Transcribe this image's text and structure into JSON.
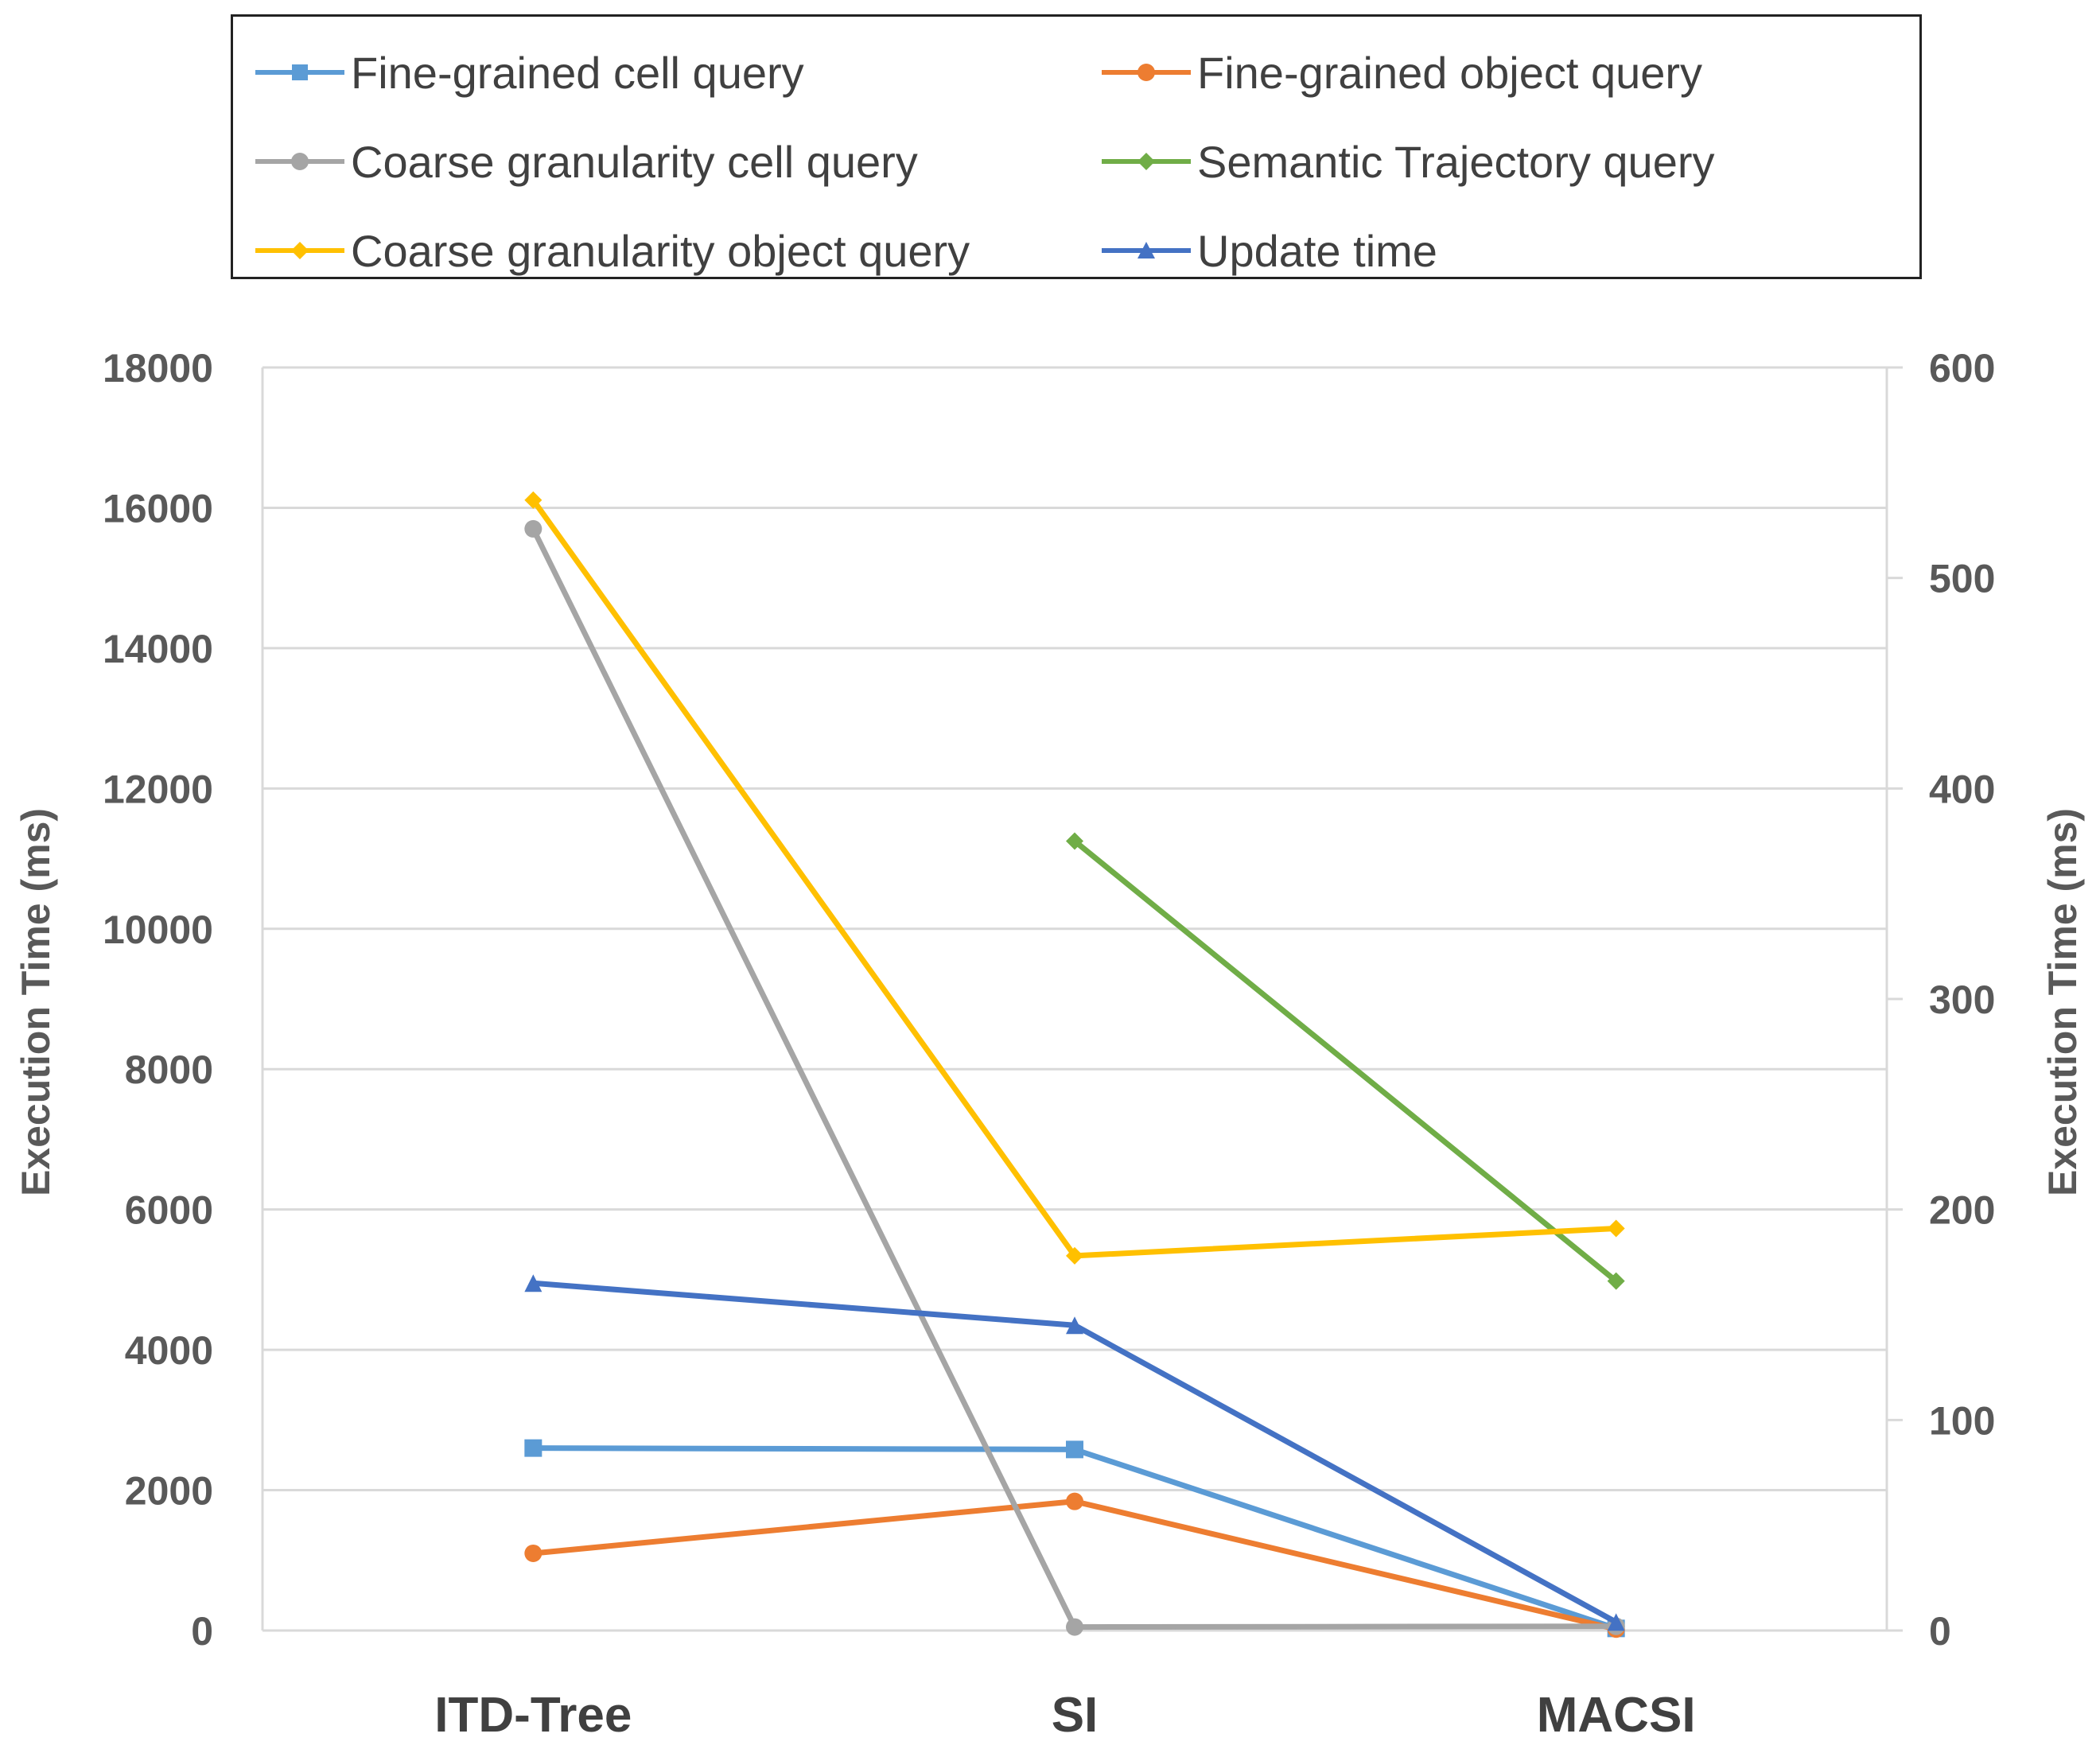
{
  "chart_data": {
    "type": "line",
    "categories": [
      "ITD-Tree",
      "SI",
      "MACSI"
    ],
    "y_left": {
      "label": "Execution Time (ms)",
      "range": [
        0,
        18000
      ],
      "ticks": [
        "0",
        "2000",
        "4000",
        "6000",
        "8000",
        "10000",
        "12000",
        "14000",
        "16000",
        "18000"
      ]
    },
    "y_right": {
      "label": "Execution Time (ms)",
      "range": [
        0,
        600
      ],
      "ticks": [
        "0",
        "100",
        "200",
        "300",
        "400",
        "500",
        "600"
      ]
    },
    "grid": true,
    "legend_position": "top",
    "series": [
      {
        "name": "Fine-grained cell query",
        "axis": "left",
        "color": "#5B9BD5",
        "marker": "square",
        "values": [
          2600,
          2580,
          30
        ]
      },
      {
        "name": "Fine-grained object query",
        "axis": "left",
        "color": "#ED7D31",
        "marker": "circle",
        "values": [
          1100,
          1840,
          20
        ]
      },
      {
        "name": "Coarse granularity cell query",
        "axis": "left",
        "color": "#A5A5A5",
        "marker": "circle",
        "values": [
          15700,
          50,
          60
        ]
      },
      {
        "name": "Semantic Trajectory query",
        "axis": "right",
        "color": "#70AD47",
        "marker": "diamond",
        "values": [
          null,
          375,
          166
        ]
      },
      {
        "name": "Coarse granularity object query",
        "axis": "right",
        "color": "#FFC000",
        "marker": "diamond",
        "values": [
          537,
          178,
          191
        ]
      },
      {
        "name": "Update time",
        "axis": "right",
        "color": "#4472C4",
        "marker": "triangle",
        "values": [
          165,
          145,
          4
        ]
      }
    ]
  },
  "legend": {
    "items": [
      "Fine-grained cell query",
      "Fine-grained object query",
      "Coarse granularity cell query",
      "Semantic Trajectory query",
      "Coarse granularity object query",
      "Update time"
    ]
  }
}
